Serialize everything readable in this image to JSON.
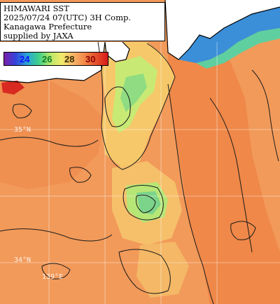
{
  "title": {
    "line1": "HIMAWARI SST",
    "line2": "2025/07/24 07(UTC) 3H Comp.",
    "line3": "Kanagawa Prefecture",
    "line4": "supplied by JAXA"
  },
  "colorbar": {
    "labels": [
      "24",
      "26",
      "28",
      "30"
    ],
    "label_colors": [
      "#1010ff",
      "#0b7d28",
      "#3b2e00",
      "#8a0000"
    ],
    "colors": [
      "#7a1fa8",
      "#3344dd",
      "#2aa6d4",
      "#3fd08a",
      "#b8e86a",
      "#f2ea6a",
      "#f6b56a",
      "#f28848",
      "#e4502a",
      "#d81818"
    ]
  },
  "grid_labels": {
    "lat_35": "35°N",
    "lat_34": "34°N",
    "lon_139": "139°E"
  },
  "colors": {
    "sea_warm": "#f29a5a",
    "sea_warmer": "#ef8848",
    "sea_cool": "#f6c86a",
    "sea_cooler": "#e8e870",
    "sea_cold": "#9fe07a",
    "land": "#ffffff",
    "coast_cold": "#3a6fd8",
    "contour": "#1a1a1a",
    "grid": "#ffffff"
  }
}
